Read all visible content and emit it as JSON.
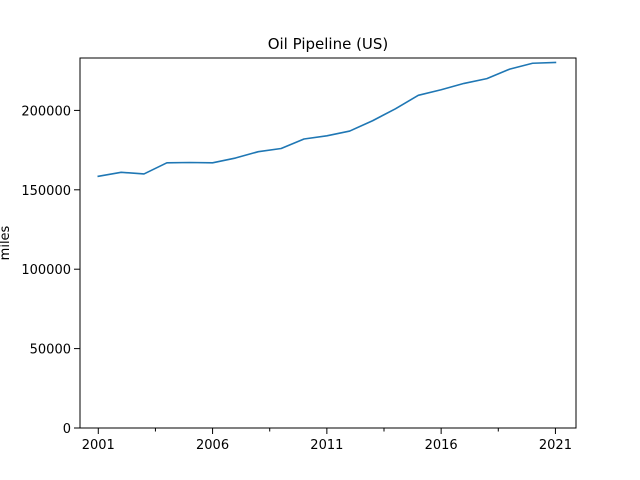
{
  "chart_data": {
    "type": "line",
    "title": "Oil Pipeline (US)",
    "xlabel": "",
    "ylabel": "miles",
    "xlim": [
      2000.2,
      2021.9
    ],
    "ylim": [
      0,
      233000
    ],
    "x_major_ticks": [
      2001,
      2006,
      2011,
      2016,
      2021
    ],
    "x_major_tick_labels": [
      "2001",
      "2006",
      "2011",
      "2016",
      "2021"
    ],
    "x_minor_ticks": [
      2003.5,
      2008.5,
      2013.5,
      2018.5
    ],
    "y_ticks": [
      0,
      50000,
      100000,
      150000,
      200000
    ],
    "y_tick_labels": [
      "0",
      "50000",
      "100000",
      "150000",
      "200000"
    ],
    "grid": false,
    "legend": "none",
    "series": [
      {
        "color": "#1f77b4",
        "x": [
          2001,
          2002,
          2003,
          2004,
          2005,
          2006,
          2007,
          2008,
          2009,
          2010,
          2011,
          2012,
          2013,
          2014,
          2015,
          2016,
          2017,
          2018,
          2019,
          2020,
          2021
        ],
        "y": [
          158500,
          161000,
          160000,
          167000,
          167200,
          167000,
          170000,
          174000,
          176000,
          182000,
          184000,
          187000,
          193500,
          201000,
          209500,
          213000,
          217000,
          220000,
          226000,
          229700,
          230200
        ]
      }
    ]
  }
}
